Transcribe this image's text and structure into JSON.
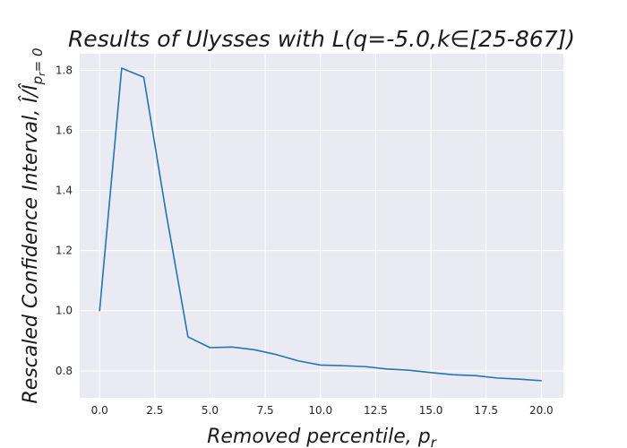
{
  "chart_data": {
    "type": "line",
    "title": "Results of Ulysses with L(q=-5.0,k∈[25-867])",
    "xlabel": "Removed percentile, p",
    "xlabel_sub": "r",
    "ylabel": "Rescaled Confidence Interval, Î/Î",
    "ylabel_sub": "p",
    "ylabel_subsub": "r",
    "ylabel_tail": "= 0",
    "xlim": [
      -0.9,
      21.0
    ],
    "ylim": [
      0.71,
      1.855
    ],
    "xticks": [
      0,
      2.5,
      5,
      7.5,
      10,
      12.5,
      15,
      17.5,
      20
    ],
    "xtick_labels": [
      "0.0",
      "2.5",
      "5.0",
      "7.5",
      "10.0",
      "12.5",
      "15.0",
      "17.5",
      "20.0"
    ],
    "yticks": [
      0.8,
      1.0,
      1.2,
      1.4,
      1.6,
      1.8
    ],
    "ytick_labels": [
      "0.8",
      "1.0",
      "1.2",
      "1.4",
      "1.6",
      "1.8"
    ],
    "grid": true,
    "series": [
      {
        "color": "#1f77b4",
        "x": [
          0,
          1,
          2,
          3,
          4,
          5,
          6,
          7,
          8,
          9,
          10,
          11,
          12,
          13,
          14,
          15,
          16,
          17,
          18,
          19,
          20
        ],
        "y": [
          1.0,
          1.807,
          1.777,
          1.33,
          0.913,
          0.877,
          0.879,
          0.87,
          0.854,
          0.833,
          0.819,
          0.817,
          0.814,
          0.806,
          0.802,
          0.794,
          0.787,
          0.784,
          0.776,
          0.772,
          0.767
        ]
      }
    ]
  }
}
